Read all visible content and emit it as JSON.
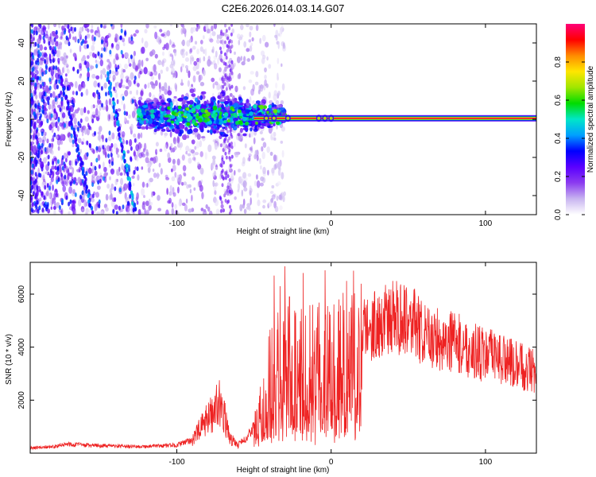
{
  "figure_title": "C2E6.2026.014.03.14.G07",
  "chart_data": [
    {
      "type": "heatmap",
      "title": "C2E6.2026.014.03.14.G07",
      "xlabel": "Height of straight line (km)",
      "ylabel": "Frequency (Hz)",
      "xlim": [
        -195,
        133
      ],
      "ylim": [
        -50,
        50
      ],
      "x_ticks": [
        -100,
        0,
        100
      ],
      "x_tick_labels": [
        "-100",
        "0",
        "100"
      ],
      "y_ticks": [
        -40,
        -20,
        0,
        20,
        40
      ],
      "y_tick_labels": [
        "-40",
        "-20",
        "0",
        "20",
        "40"
      ],
      "colorbar": {
        "label": "Normalized spectral amplitude",
        "range": [
          0.0,
          1.0
        ],
        "ticks": [
          0.0,
          0.2,
          0.4,
          0.6,
          0.8
        ],
        "tick_labels": [
          "0.0",
          "0.2",
          "0.4",
          "0.6",
          "0.8"
        ],
        "colormap": [
          "#ffffff",
          "#c8b4f0",
          "#8c3cf0",
          "#5a00ff",
          "#0000ff",
          "#00a0ff",
          "#00e6c8",
          "#00dc00",
          "#a0e600",
          "#ffe600",
          "#ff8c00",
          "#ff0000",
          "#ff0078"
        ]
      },
      "features": [
        {
          "name": "stable tone",
          "x_range": [
            -50,
            133
          ],
          "frequency_hz": 0.5,
          "amplitude": 0.95
        },
        {
          "name": "turbulent band",
          "x_range": [
            -125,
            -30
          ],
          "frequency_hz": 2,
          "spread_hz": 10,
          "amplitude": 0.45
        },
        {
          "name": "diagonal streak 1",
          "x_start": -175,
          "freq_start": 22,
          "x_end": -155,
          "freq_end": -48,
          "amplitude": 0.35
        },
        {
          "name": "diagonal streak 2",
          "x_start": -145,
          "freq_start": 24,
          "x_end": -127,
          "freq_end": -48,
          "amplitude": 0.4
        },
        {
          "name": "noise region",
          "x_range": [
            -195,
            -30
          ],
          "amplitude": 0.15
        }
      ]
    },
    {
      "type": "line",
      "xlabel": "Height of straight line (km)",
      "ylabel": "SNR (10 * v/v)",
      "xlim": [
        -195,
        133
      ],
      "ylim": [
        0,
        7200
      ],
      "x_ticks": [
        -100,
        0,
        100
      ],
      "x_tick_labels": [
        "-100",
        "0",
        "100"
      ],
      "y_ticks": [
        2000,
        4000,
        6000
      ],
      "y_tick_labels": [
        "2000",
        "4000",
        "6000"
      ],
      "series": [
        {
          "name": "SNR",
          "color": "#ee2222",
          "envelope_x": [
            -195,
            -180,
            -170,
            -160,
            -140,
            -120,
            -100,
            -90,
            -85,
            -80,
            -75,
            -72,
            -68,
            -65,
            -60,
            -55,
            -50,
            -45,
            -40,
            -35,
            -30,
            -25,
            -20,
            -15,
            -10,
            -5,
            0,
            10,
            20,
            30,
            40,
            50,
            60,
            70,
            80,
            90,
            100,
            110,
            120,
            130,
            133
          ],
          "envelope_y": [
            200,
            250,
            350,
            300,
            260,
            250,
            300,
            500,
            900,
            1300,
            1700,
            2000,
            1100,
            500,
            350,
            550,
            1000,
            1800,
            2800,
            3200,
            3400,
            3500,
            3600,
            3900,
            3600,
            3300,
            3500,
            4000,
            4600,
            4900,
            5100,
            5200,
            4400,
            4300,
            4200,
            3900,
            3700,
            3600,
            3300,
            3200,
            3000
          ],
          "spikes": [
            {
              "x": -37,
              "y": 6700
            },
            {
              "x": -33,
              "y": 6300
            },
            {
              "x": -30,
              "y": 7050
            },
            {
              "x": -27,
              "y": 5900
            },
            {
              "x": -23,
              "y": 5300
            },
            {
              "x": -18,
              "y": 6800
            },
            {
              "x": -12,
              "y": 5600
            },
            {
              "x": -4,
              "y": 6900
            },
            {
              "x": 5,
              "y": 5800
            },
            {
              "x": 10,
              "y": 6500
            },
            {
              "x": 18,
              "y": 5100
            }
          ]
        }
      ]
    }
  ]
}
